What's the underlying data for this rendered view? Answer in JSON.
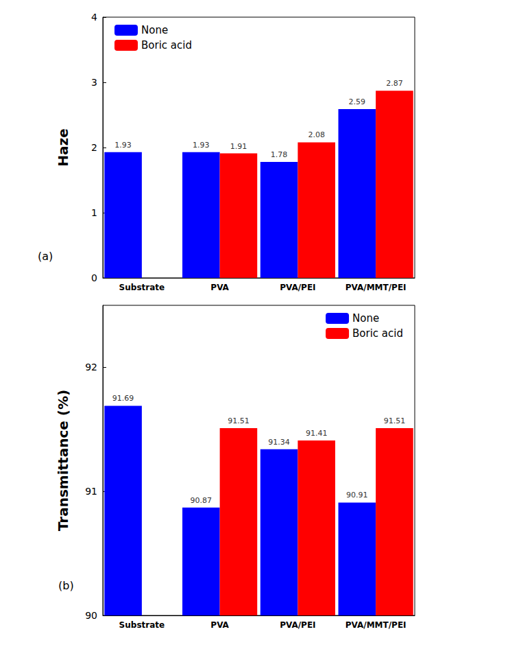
{
  "chart_data": [
    {
      "type": "bar",
      "annotation": "(a)",
      "y_label": "Haze",
      "categories": [
        "Substrate",
        "PVA",
        "PVA/PEI",
        "PVA/MMT/PEI"
      ],
      "series": [
        {
          "name": "None",
          "color": "#0000ff",
          "values": [
            1.93,
            1.93,
            1.78,
            2.59
          ]
        },
        {
          "name": "Boric acid",
          "color": "#ff0000",
          "values": [
            null,
            1.91,
            2.08,
            2.87
          ]
        }
      ],
      "ylim": [
        0,
        4
      ],
      "yticks": [
        0,
        1,
        2,
        3,
        4
      ],
      "grid": false,
      "legend": "upper left",
      "data_labels": true
    },
    {
      "type": "bar",
      "annotation": "(b)",
      "y_label": "Transmittance (%)",
      "categories": [
        "Substrate",
        "PVA",
        "PVA/PEI",
        "PVA/MMT/PEI"
      ],
      "series": [
        {
          "name": "None",
          "color": "#0000ff",
          "values": [
            91.69,
            90.87,
            91.34,
            90.91
          ]
        },
        {
          "name": "Boric acid",
          "color": "#ff0000",
          "values": [
            null,
            91.51,
            91.41,
            91.51
          ]
        }
      ],
      "ylim": [
        90,
        92.5
      ],
      "yticks": [
        90,
        91,
        92
      ],
      "grid": false,
      "legend": "upper right",
      "data_labels": true
    }
  ]
}
